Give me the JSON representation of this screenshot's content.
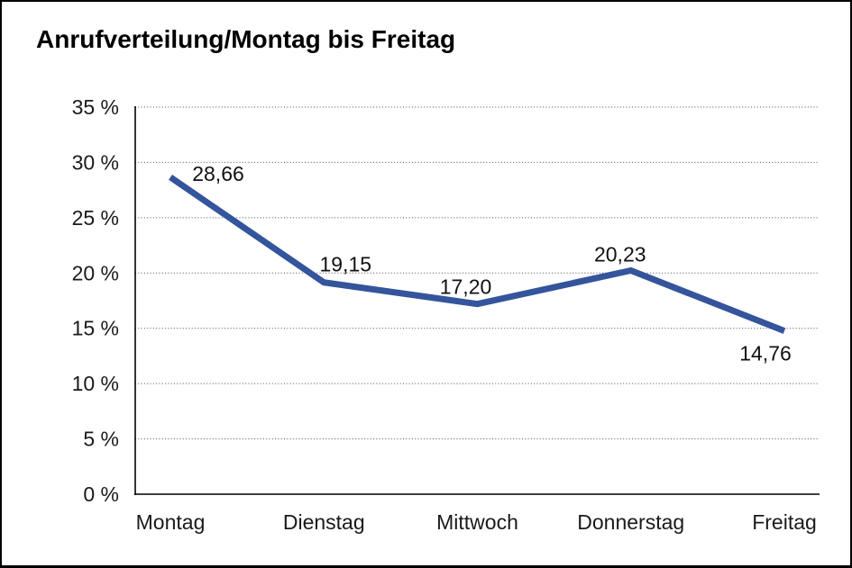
{
  "window": {
    "background": "#ffffff",
    "frame_border_color": "#000000"
  },
  "chart_data": {
    "type": "line",
    "title": "Anrufverteilung/Montag bis Freitag",
    "categories": [
      "Montag",
      "Dienstag",
      "Mittwoch",
      "Donnerstag",
      "Freitag"
    ],
    "values": [
      28.66,
      19.15,
      17.2,
      20.23,
      14.76
    ],
    "value_labels": [
      "28,66",
      "19,15",
      "17,20",
      "20,23",
      "14,76"
    ],
    "xlabel": "",
    "ylabel": "",
    "ylim": [
      0,
      35
    ],
    "y_ticks": [
      35,
      30,
      25,
      20,
      15,
      10,
      5,
      0
    ],
    "y_tick_labels": [
      "35 %",
      "30 %",
      "25 %",
      "20 %",
      "15 %",
      "10 %",
      "5 %",
      "0 %"
    ],
    "grid": "horizontal-dotted",
    "legend": "none",
    "line_color": "#34549C",
    "line_width": 7,
    "grid_color": "#4d4d4d",
    "axis_color": "#000000",
    "text_color": "#1a1a1a"
  }
}
